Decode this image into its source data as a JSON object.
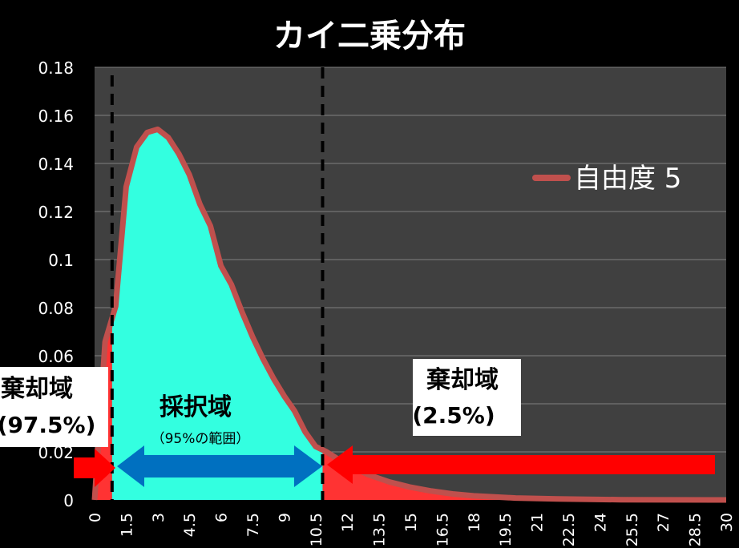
{
  "chart_data": {
    "type": "area",
    "title": "カイ二乗分布",
    "legend": {
      "label": "自由度 5",
      "position": "right",
      "color": "#c0504d"
    },
    "degrees_of_freedom": 5,
    "series": [
      {
        "name": "自由度 5",
        "x": [
          0,
          0.5,
          1,
          1.5,
          2,
          2.5,
          3,
          3.5,
          4,
          4.5,
          5,
          5.5,
          6,
          6.5,
          7,
          7.5,
          8,
          8.5,
          9,
          9.5,
          10,
          10.5,
          11,
          12,
          13,
          14,
          15,
          16,
          17,
          18,
          20,
          22,
          25,
          30
        ],
        "y": [
          0,
          0.0658,
          0.0806,
          0.1303,
          0.1468,
          0.1529,
          0.1542,
          0.1508,
          0.144,
          0.1353,
          0.1231,
          0.114,
          0.0974,
          0.0896,
          0.0782,
          0.0679,
          0.0587,
          0.0505,
          0.0433,
          0.037,
          0.0283,
          0.0222,
          0.0201,
          0.0146,
          0.0105,
          0.0075,
          0.0053,
          0.0037,
          0.0025,
          0.0017,
          0.0008,
          0.0004,
          0.0001,
          0.0
        ]
      }
    ],
    "xlim": [
      0,
      30
    ],
    "ylim": [
      0,
      0.18
    ],
    "x_ticks": [
      "0",
      "1.5",
      "3",
      "4.5",
      "6",
      "7.5",
      "9",
      "10.5",
      "12",
      "13.5",
      "15",
      "16.5",
      "18",
      "19.5",
      "21",
      "22.5",
      "24",
      "25.5",
      "27",
      "28.5",
      "30"
    ],
    "y_ticks": [
      "0",
      "0.02",
      "0.04",
      "0.06",
      "0.08",
      "0.1",
      "0.12",
      "0.14",
      "0.16",
      "0.18"
    ],
    "critical_values": [
      0.831,
      10.83
    ],
    "annotations": {
      "left_reject": {
        "title": "棄却域",
        "percent": "(97.5%)"
      },
      "right_reject": {
        "title": "棄却域",
        "percent": "(2.5%)"
      },
      "accept": {
        "title": "採択域",
        "subtitle": "（95%の範囲）"
      }
    },
    "colors": {
      "background": "#000000",
      "plot_area": "#404040",
      "gridline": "#808080",
      "curve": "#c0504d",
      "reject_fill": "#ff3333",
      "accept_fill": "#33ffe0",
      "accept_arrow": "#0070c0",
      "reject_arrow": "#ff0000",
      "text": "#ffffff",
      "callout_bg": "#ffffff",
      "callout_text": "#000000"
    }
  }
}
